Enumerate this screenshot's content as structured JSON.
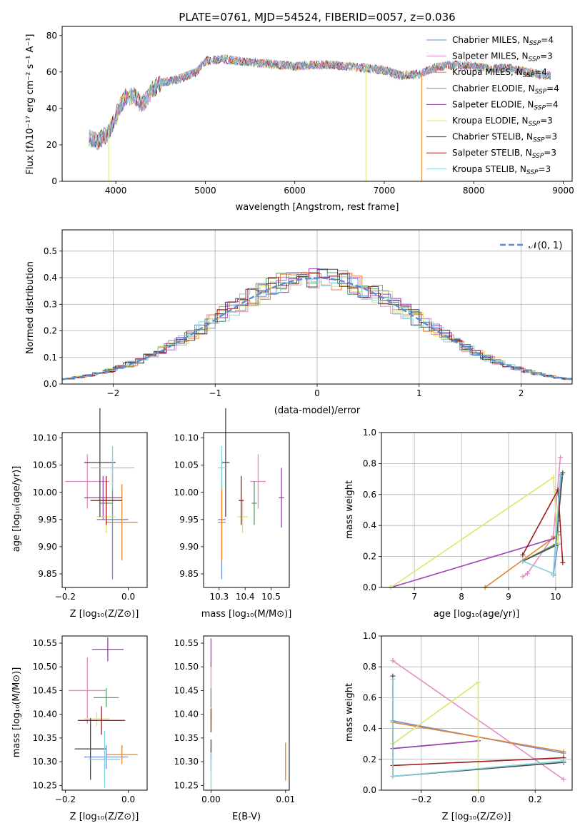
{
  "colors": [
    "#6f8fd8",
    "#e58bc5",
    "#e3832f",
    "#5e9e62",
    "#9b3fb5",
    "#d9e86a",
    "#4a4a4a",
    "#a01c1c",
    "#7fd3dc"
  ],
  "chart_data": [
    {
      "type": "line",
      "title": "PLATE=0761, MJD=54524, FIBERID=0057, z=0.036",
      "xlabel": "wavelength [Angstrom, rest frame]",
      "ylabel": "Flux [fλ10⁻¹⁷ erg cm⁻² s⁻¹ A⁻¹]",
      "xlim": [
        3400,
        9100
      ],
      "ylim": [
        0,
        85
      ],
      "xticks": [
        "4000",
        "5000",
        "6000",
        "7000",
        "8000",
        "9000"
      ],
      "yticks": [
        "0",
        "20",
        "40",
        "60",
        "80"
      ],
      "legend_position": "top-right",
      "spectrum": {
        "x": [
          3700,
          3800,
          3900,
          3950,
          4000,
          4100,
          4200,
          4300,
          4400,
          4500,
          4700,
          4900,
          5000,
          5200,
          5400,
          5600,
          5800,
          6000,
          6200,
          6400,
          6600,
          6800,
          7000,
          7200,
          7400,
          7600,
          7800,
          8000,
          8200,
          8400,
          8600,
          8800
        ],
        "y": [
          24,
          22,
          26,
          30,
          36,
          46,
          47,
          42,
          50,
          54,
          56,
          60,
          66,
          67,
          66,
          65,
          64,
          63,
          64,
          64,
          63,
          62,
          61,
          58,
          59,
          63,
          64,
          63,
          62,
          62,
          60,
          58
        ]
      },
      "series": [
        {
          "name": "Chabrier MILES, N_SSP=4"
        },
        {
          "name": "Salpeter MILES, N_SSP=3"
        },
        {
          "name": "Kroupa MILES, N_SSP=4"
        },
        {
          "name": "Chabrier ELODIE, N_SSP=4"
        },
        {
          "name": "Salpeter ELODIE, N_SSP=4"
        },
        {
          "name": "Kroupa ELODIE, N_SSP=3"
        },
        {
          "name": "Chabrier STELIB, N_SSP=3"
        },
        {
          "name": "Salpeter STELIB, N_SSP=3"
        },
        {
          "name": "Kroupa STELIB, N_SSP=3"
        }
      ]
    },
    {
      "type": "line",
      "xlabel": "(data-model)/error",
      "ylabel": "Normed distribution",
      "xlim": [
        -2.5,
        2.5
      ],
      "ylim": [
        0,
        0.58
      ],
      "xticks": [
        "−2",
        "−1",
        "0",
        "1",
        "2"
      ],
      "yticks": [
        "0.0",
        "0.1",
        "0.2",
        "0.3",
        "0.4",
        "0.5"
      ],
      "grid": true,
      "legend_position": "top-right",
      "legend": "𝒩(0, 1)",
      "bin_width": 0.1,
      "histogram_note": "9 step histograms approximately following N(0,1)"
    },
    {
      "type": "scatter",
      "xlabel": "Z [log₁₀(Z/Z⊙)]",
      "ylabel": "age  [log₁₀(age/yr)]",
      "xlim": [
        -0.21,
        0.06
      ],
      "ylim": [
        9.825,
        10.11
      ],
      "xticks": [
        "−0.2",
        "0.0"
      ],
      "yticks": [
        "9.85",
        "9.90",
        "9.95",
        "10.00",
        "10.05",
        "10.10"
      ],
      "points": [
        {
          "x": -0.05,
          "y": 9.95,
          "ex": 0.05,
          "ey": 0.11
        },
        {
          "x": -0.13,
          "y": 10.02,
          "ex": 0.07,
          "ey": 0.05
        },
        {
          "x": -0.02,
          "y": 9.945,
          "ex": 0.05,
          "ey": 0.07
        },
        {
          "x": -0.07,
          "y": 9.98,
          "ex": 0.02,
          "ey": 0.04
        },
        {
          "x": -0.08,
          "y": 9.99,
          "ex": 0.06,
          "ey": 0.04
        },
        {
          "x": -0.07,
          "y": 9.955,
          "ex": 0.03,
          "ey": 0.03
        },
        {
          "x": -0.09,
          "y": 10.055,
          "ex": 0.05,
          "ey": 0.1
        },
        {
          "x": -0.07,
          "y": 9.985,
          "ex": 0.05,
          "ey": 0.045
        },
        {
          "x": -0.05,
          "y": 10.045,
          "ex": 0.07,
          "ey": 0.04
        }
      ]
    },
    {
      "type": "scatter",
      "xlabel": "mass [log₁₀(M/M⊙)]",
      "xlim": [
        10.24,
        10.57
      ],
      "ylim": [
        9.825,
        10.11
      ],
      "xticks": [
        "10.3",
        "10.4",
        "10.5"
      ],
      "yticks": [
        "9.85",
        "9.90",
        "9.95",
        "10.00",
        "10.05",
        "10.10"
      ],
      "points": [
        {
          "x": 10.31,
          "y": 9.95,
          "ex": 0.015,
          "ey": 0.11
        },
        {
          "x": 10.45,
          "y": 10.02,
          "ex": 0.03,
          "ey": 0.05
        },
        {
          "x": 10.31,
          "y": 9.945,
          "ex": 0.015,
          "ey": 0.07
        },
        {
          "x": 10.435,
          "y": 9.98,
          "ex": 0.01,
          "ey": 0.04
        },
        {
          "x": 10.54,
          "y": 9.99,
          "ex": 0.01,
          "ey": 0.055
        },
        {
          "x": 10.39,
          "y": 9.955,
          "ex": 0.02,
          "ey": 0.03
        },
        {
          "x": 10.325,
          "y": 10.055,
          "ex": 0.015,
          "ey": 0.1
        },
        {
          "x": 10.385,
          "y": 9.985,
          "ex": 0.01,
          "ey": 0.045
        },
        {
          "x": 10.31,
          "y": 10.045,
          "ex": 0.015,
          "ey": 0.04
        }
      ]
    },
    {
      "type": "line",
      "xlabel": "age  [log₁₀(age/yr)]",
      "ylabel": "mass weight",
      "xlim": [
        6.3,
        10.35
      ],
      "ylim": [
        0,
        1.0
      ],
      "xticks": [
        "7",
        "8",
        "9",
        "10"
      ],
      "yticks": [
        "0.0",
        "0.2",
        "0.4",
        "0.6",
        "0.8",
        "1.0"
      ],
      "grid": true,
      "series": [
        {
          "x": [
            9.95,
            10.05,
            10.05,
            10.12
          ],
          "y": [
            0.08,
            0.28,
            0.46,
            0.73
          ]
        },
        {
          "x": [
            9.3,
            9.4,
            9.95,
            10.1
          ],
          "y": [
            0.07,
            0.09,
            0.33,
            0.84
          ]
        },
        {
          "x": [
            8.5,
            9.95,
            10.05,
            10.05
          ],
          "y": [
            0.0,
            0.32,
            0.34,
            0.43
          ]
        },
        {
          "x": [
            9.3,
            10.0,
            10.05
          ],
          "y": [
            0.17,
            0.28,
            0.36
          ]
        },
        {
          "x": [
            6.5,
            10.0,
            10.05
          ],
          "y": [
            0.0,
            0.32,
            0.43
          ]
        },
        {
          "x": [
            6.5,
            9.95,
            10.05
          ],
          "y": [
            0.0,
            0.71,
            0.29
          ]
        },
        {
          "x": [
            9.3,
            10.0,
            10.15
          ],
          "y": [
            0.17,
            0.27,
            0.74
          ]
        },
        {
          "x": [
            9.3,
            10.05,
            10.15
          ],
          "y": [
            0.21,
            0.63,
            0.16
          ]
        },
        {
          "x": [
            9.3,
            9.95,
            10.1
          ],
          "y": [
            0.17,
            0.09,
            0.72
          ]
        }
      ]
    },
    {
      "type": "scatter",
      "xlabel": "Z [log₁₀(Z/Z⊙)]",
      "ylabel": "mass [log₁₀(M/M⊙)]",
      "xlim": [
        -0.21,
        0.06
      ],
      "ylim": [
        10.24,
        10.565
      ],
      "xticks": [
        "−0.2",
        "0.0"
      ],
      "yticks": [
        "10.25",
        "10.30",
        "10.35",
        "10.40",
        "10.45",
        "10.50",
        "10.55"
      ],
      "points": [
        {
          "x": -0.07,
          "y": 10.31,
          "ex": 0.07,
          "ey": 0.025
        },
        {
          "x": -0.13,
          "y": 10.45,
          "ex": 0.06,
          "ey": 0.07
        },
        {
          "x": -0.02,
          "y": 10.315,
          "ex": 0.05,
          "ey": 0.02
        },
        {
          "x": -0.07,
          "y": 10.435,
          "ex": 0.04,
          "ey": 0.02
        },
        {
          "x": -0.065,
          "y": 10.537,
          "ex": 0.05,
          "ey": 0.025
        },
        {
          "x": -0.1,
          "y": 10.39,
          "ex": 0.04,
          "ey": 0.015
        },
        {
          "x": -0.12,
          "y": 10.327,
          "ex": 0.05,
          "ey": 0.065
        },
        {
          "x": -0.085,
          "y": 10.387,
          "ex": 0.075,
          "ey": 0.03
        },
        {
          "x": -0.075,
          "y": 10.305,
          "ex": 0.05,
          "ey": 0.06
        }
      ]
    },
    {
      "type": "scatter",
      "xlabel": "E(B-V)",
      "xlim": [
        -0.001,
        0.0105
      ],
      "ylim": [
        10.24,
        10.565
      ],
      "xticks": [
        "0.00",
        "0.01"
      ],
      "yticks": [
        "10.25",
        "10.30",
        "10.35",
        "10.40",
        "10.45",
        "10.50",
        "10.55"
      ],
      "points": [
        {
          "x": 0.0,
          "y": 10.31,
          "ex": 0,
          "ey": 0.03
        },
        {
          "x": 0.0,
          "y": 10.45,
          "ex": 0,
          "ey": 0.06
        },
        {
          "x": 0.01,
          "y": 10.3,
          "ex": 0,
          "ey": 0.04
        },
        {
          "x": 0.0,
          "y": 10.435,
          "ex": 0,
          "ey": 0.02
        },
        {
          "x": 0.0,
          "y": 10.53,
          "ex": 0,
          "ey": 0.03
        },
        {
          "x": 0.0,
          "y": 10.39,
          "ex": 0,
          "ey": 0.015
        },
        {
          "x": 0.0,
          "y": 10.327,
          "ex": 0,
          "ey": 0.02
        },
        {
          "x": 0.0,
          "y": 10.387,
          "ex": 0,
          "ey": 0.025
        },
        {
          "x": 0.0,
          "y": 10.28,
          "ex": 0,
          "ey": 0.04
        }
      ]
    },
    {
      "type": "line",
      "xlabel": "Z [log₁₀(Z/Z⊙)]",
      "ylabel": "mass weight",
      "xlim": [
        -0.34,
        0.33
      ],
      "ylim": [
        0,
        1.0
      ],
      "xticks": [
        "−0.2",
        "0.0",
        "0.2"
      ],
      "yticks": [
        "0.0",
        "0.2",
        "0.4",
        "0.6",
        "0.8",
        "1.0"
      ],
      "grid": true,
      "series": [
        {
          "x": [
            -0.3,
            0.3
          ],
          "y": [
            0.45,
            0.24
          ]
        },
        {
          "x": [
            -0.3,
            0.3
          ],
          "y": [
            0.84,
            0.07
          ]
        },
        {
          "x": [
            -0.3,
            0.3
          ],
          "y": [
            0.44,
            0.25
          ]
        },
        {
          "x": [
            -0.3,
            0.0
          ],
          "y": [
            0.27,
            0.32
          ]
        },
        {
          "x": [
            -0.3,
            0.0
          ],
          "y": [
            0.27,
            0.32
          ]
        },
        {
          "x": [
            -0.3,
            0.0,
            0.0
          ],
          "y": [
            0.3,
            0.7,
            0.0
          ]
        },
        {
          "x": [
            -0.3,
            -0.3,
            0.3
          ],
          "y": [
            0.74,
            0.09,
            0.18
          ]
        },
        {
          "x": [
            -0.3,
            0.3
          ],
          "y": [
            0.16,
            0.21
          ]
        },
        {
          "x": [
            -0.3,
            -0.3,
            0.3
          ],
          "y": [
            0.72,
            0.09,
            0.19
          ]
        }
      ]
    }
  ]
}
